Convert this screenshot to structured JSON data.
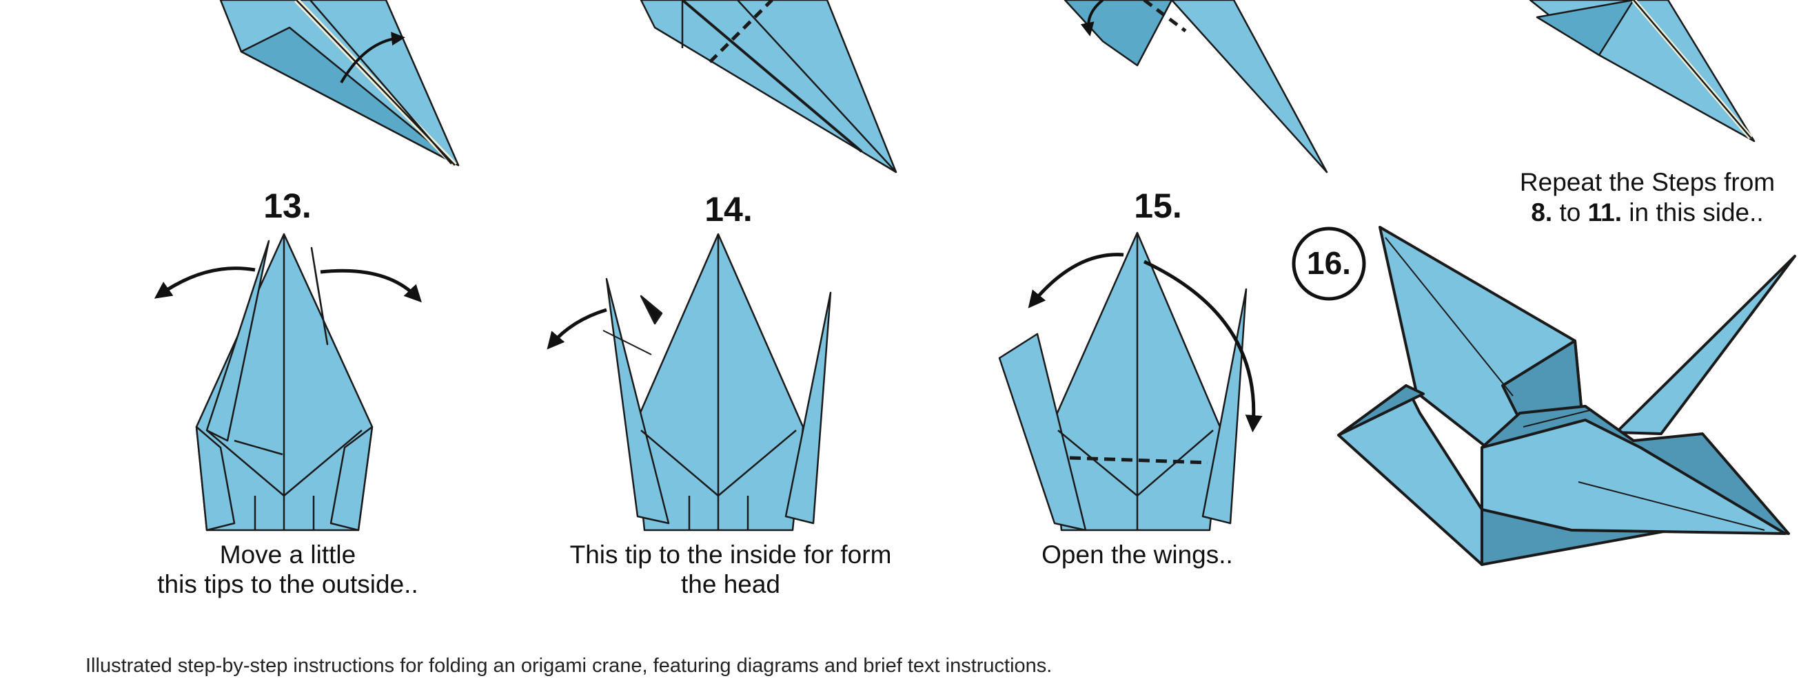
{
  "steps": [
    {
      "number": "13.",
      "instruction_line1": "Move a little",
      "instruction_line2": "this tips to the outside.."
    },
    {
      "number": "14.",
      "instruction_line1": "This tip to the inside for form",
      "instruction_line2": "the head"
    },
    {
      "number": "15.",
      "instruction_line1": "Open the wings.."
    },
    {
      "number": "16."
    }
  ],
  "repeat_note": {
    "line1": "Repeat the Steps from",
    "from_step": "8.",
    "to_word": " to ",
    "to_step": "11.",
    "suffix": " in this side.."
  },
  "caption": "Illustrated step-by-step instructions for folding an origami crane, featuring diagrams and brief text instructions.",
  "colors": {
    "paper": "#7cc3df",
    "paper_shade": "#4f97b5",
    "outline": "#1a1a1a",
    "arrow": "#111111"
  }
}
